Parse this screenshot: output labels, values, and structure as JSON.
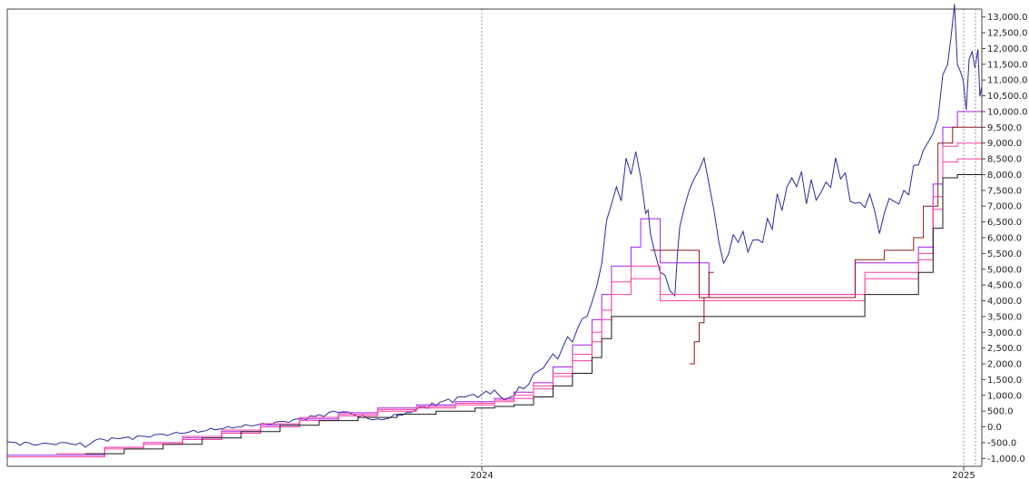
{
  "chart_data": {
    "type": "line",
    "title": "",
    "xlabel": "",
    "ylabel": "",
    "x_ticks": [
      "2024",
      "2025"
    ],
    "y_ticks": [
      13000,
      12500,
      12000,
      11500,
      11000,
      10500,
      10000,
      9500,
      9000,
      8500,
      8000,
      7500,
      7000,
      6500,
      6000,
      5500,
      5000,
      4500,
      4000,
      3500,
      3000,
      2500,
      2000,
      1500,
      1000,
      500,
      0,
      -500,
      -1000
    ],
    "y_tick_labels": [
      "13,000.0",
      "12,500.0",
      "12,000.0",
      "11,500.0",
      "11,000.0",
      "10,500.0",
      "10,000.0",
      "9,500.0",
      "9,000.0",
      "8,500.0",
      "8,000.0",
      "7,500.0",
      "7,000.0",
      "6,500.0",
      "6,000.0",
      "5,500.0",
      "5,000.0",
      "4,500.0",
      "4,000.0",
      "3,500.0",
      "3,000.0",
      "2,500.0",
      "2,000.0",
      "1,500.0",
      "1,000.0",
      "500.0",
      "0.0",
      "-500.0",
      "-1,000.0"
    ],
    "ylim": [
      -1250,
      13250
    ],
    "grid": "vertical",
    "colors": {
      "price": "#2b2b9e",
      "stop_dark_red": "#8b1a1a",
      "stop_magenta": "#ff3fa0",
      "stop_purple": "#a020f0",
      "stop_black": "#1a1a1a",
      "axis": "#444444",
      "gridline": "#999999"
    },
    "series": [
      {
        "kind": "price",
        "color_key": "price",
        "points": [
          [
            0,
            -500
          ],
          [
            0.04,
            -560
          ],
          [
            0.06,
            -480
          ],
          [
            0.08,
            -620
          ],
          [
            0.09,
            -420
          ],
          [
            0.12,
            -360
          ],
          [
            0.16,
            -250
          ],
          [
            0.2,
            -120
          ],
          [
            0.24,
            20
          ],
          [
            0.28,
            140
          ],
          [
            0.32,
            350
          ],
          [
            0.34,
            520
          ],
          [
            0.36,
            350
          ],
          [
            0.38,
            200
          ],
          [
            0.41,
            450
          ],
          [
            0.44,
            750
          ],
          [
            0.47,
            950
          ],
          [
            0.5,
            1100
          ],
          [
            0.51,
            850
          ],
          [
            0.53,
            1250
          ],
          [
            0.55,
            1900
          ],
          [
            0.57,
            2500
          ],
          [
            0.59,
            3300
          ],
          [
            0.6,
            4000
          ],
          [
            0.61,
            5500
          ],
          [
            0.62,
            6900
          ],
          [
            0.635,
            8000
          ],
          [
            0.645,
            9100
          ],
          [
            0.655,
            7200
          ],
          [
            0.66,
            5800
          ],
          [
            0.675,
            4600
          ],
          [
            0.685,
            4400
          ],
          [
            0.69,
            6500
          ],
          [
            0.705,
            7600
          ],
          [
            0.715,
            8400
          ],
          [
            0.725,
            7000
          ],
          [
            0.735,
            5300
          ],
          [
            0.75,
            5900
          ],
          [
            0.765,
            5700
          ],
          [
            0.78,
            6500
          ],
          [
            0.795,
            7300
          ],
          [
            0.81,
            7700
          ],
          [
            0.825,
            7300
          ],
          [
            0.84,
            7800
          ],
          [
            0.855,
            8500
          ],
          [
            0.865,
            7000
          ],
          [
            0.875,
            6700
          ],
          [
            0.885,
            7600
          ],
          [
            0.895,
            6400
          ],
          [
            0.905,
            7100
          ],
          [
            0.915,
            6900
          ],
          [
            0.93,
            8300
          ],
          [
            0.945,
            9200
          ],
          [
            0.955,
            10000
          ],
          [
            0.965,
            11200
          ],
          [
            0.972,
            12900
          ],
          [
            0.978,
            11800
          ],
          [
            0.984,
            10500
          ],
          [
            0.99,
            11200
          ],
          [
            0.996,
            11600
          ],
          [
            1.0,
            10800
          ]
        ]
      },
      {
        "kind": "stop",
        "color_key": "stop_purple",
        "points": [
          [
            0,
            -900
          ],
          [
            0.07,
            -900
          ],
          [
            0.1,
            -650
          ],
          [
            0.14,
            -500
          ],
          [
            0.18,
            -350
          ],
          [
            0.22,
            -150
          ],
          [
            0.26,
            50
          ],
          [
            0.3,
            250
          ],
          [
            0.34,
            450
          ],
          [
            0.38,
            600
          ],
          [
            0.42,
            700
          ],
          [
            0.46,
            800
          ],
          [
            0.5,
            900
          ],
          [
            0.52,
            1100
          ],
          [
            0.54,
            1400
          ],
          [
            0.56,
            1900
          ],
          [
            0.58,
            2600
          ],
          [
            0.6,
            3400
          ],
          [
            0.61,
            4200
          ],
          [
            0.62,
            5100
          ],
          [
            0.64,
            5700
          ],
          [
            0.65,
            6600
          ],
          [
            0.665,
            6600
          ],
          [
            0.67,
            5200
          ],
          [
            0.71,
            5200
          ],
          [
            0.72,
            4200
          ],
          [
            0.86,
            4200
          ],
          [
            0.87,
            5200
          ],
          [
            0.935,
            5700
          ],
          [
            0.95,
            7700
          ],
          [
            0.96,
            9500
          ],
          [
            0.975,
            10000
          ],
          [
            1.0,
            10000
          ]
        ]
      },
      {
        "kind": "stop",
        "color_key": "stop_dark_red",
        "points": [
          [
            0.66,
            5600
          ],
          [
            0.7,
            5600
          ],
          [
            0.71,
            4100
          ],
          [
            0.86,
            4100
          ],
          [
            0.87,
            5300
          ],
          [
            0.9,
            5600
          ],
          [
            0.93,
            6000
          ],
          [
            0.94,
            7000
          ],
          [
            0.955,
            9000
          ],
          [
            0.97,
            9500
          ],
          [
            1.0,
            9500
          ]
        ]
      },
      {
        "kind": "stop",
        "color_key": "stop_magenta",
        "points": [
          [
            0,
            -950
          ],
          [
            0.07,
            -950
          ],
          [
            0.1,
            -700
          ],
          [
            0.14,
            -550
          ],
          [
            0.18,
            -400
          ],
          [
            0.22,
            -200
          ],
          [
            0.26,
            0
          ],
          [
            0.3,
            200
          ],
          [
            0.34,
            350
          ],
          [
            0.38,
            500
          ],
          [
            0.42,
            600
          ],
          [
            0.46,
            700
          ],
          [
            0.5,
            800
          ],
          [
            0.52,
            1000
          ],
          [
            0.54,
            1300
          ],
          [
            0.56,
            1700
          ],
          [
            0.58,
            2300
          ],
          [
            0.6,
            3000
          ],
          [
            0.61,
            3700
          ],
          [
            0.62,
            4600
          ],
          [
            0.64,
            5100
          ],
          [
            0.66,
            5100
          ],
          [
            0.67,
            4200
          ],
          [
            0.87,
            4200
          ],
          [
            0.88,
            4900
          ],
          [
            0.935,
            5500
          ],
          [
            0.95,
            7300
          ],
          [
            0.96,
            8900
          ],
          [
            0.975,
            9000
          ],
          [
            1.0,
            9000
          ]
        ]
      },
      {
        "kind": "stop",
        "color_key": "stop_magenta",
        "points": [
          [
            0.05,
            -850
          ],
          [
            0.1,
            -650
          ],
          [
            0.14,
            -500
          ],
          [
            0.18,
            -300
          ],
          [
            0.22,
            -100
          ],
          [
            0.26,
            100
          ],
          [
            0.3,
            300
          ],
          [
            0.34,
            400
          ],
          [
            0.38,
            550
          ],
          [
            0.42,
            650
          ],
          [
            0.46,
            750
          ],
          [
            0.5,
            850
          ],
          [
            0.52,
            900
          ],
          [
            0.54,
            1200
          ],
          [
            0.56,
            1600
          ],
          [
            0.58,
            2100
          ],
          [
            0.6,
            2700
          ],
          [
            0.61,
            3400
          ],
          [
            0.62,
            4200
          ],
          [
            0.64,
            4700
          ],
          [
            0.66,
            4700
          ],
          [
            0.67,
            4000
          ],
          [
            0.87,
            4000
          ],
          [
            0.88,
            4700
          ],
          [
            0.935,
            5300
          ],
          [
            0.95,
            6900
          ],
          [
            0.96,
            8400
          ],
          [
            0.975,
            8500
          ],
          [
            1.0,
            8500
          ]
        ]
      },
      {
        "kind": "stop",
        "color_key": "stop_black",
        "points": [
          [
            0.08,
            -850
          ],
          [
            0.12,
            -700
          ],
          [
            0.16,
            -550
          ],
          [
            0.2,
            -350
          ],
          [
            0.24,
            -150
          ],
          [
            0.28,
            50
          ],
          [
            0.32,
            200
          ],
          [
            0.36,
            300
          ],
          [
            0.4,
            400
          ],
          [
            0.44,
            500
          ],
          [
            0.48,
            600
          ],
          [
            0.5,
            650
          ],
          [
            0.52,
            700
          ],
          [
            0.54,
            950
          ],
          [
            0.56,
            1300
          ],
          [
            0.58,
            1700
          ],
          [
            0.6,
            2200
          ],
          [
            0.61,
            2800
          ],
          [
            0.62,
            3500
          ],
          [
            0.64,
            3500
          ],
          [
            0.66,
            3500
          ],
          [
            0.67,
            3500
          ],
          [
            0.87,
            3500
          ],
          [
            0.88,
            4200
          ],
          [
            0.935,
            4900
          ],
          [
            0.95,
            6300
          ],
          [
            0.96,
            7900
          ],
          [
            0.975,
            8000
          ],
          [
            1.0,
            8000
          ]
        ]
      },
      {
        "kind": "stop",
        "color_key": "stop_dark_red",
        "points": [
          [
            0.7,
            2000
          ],
          [
            0.705,
            2700
          ],
          [
            0.71,
            3300
          ],
          [
            0.715,
            4100
          ],
          [
            0.72,
            4900
          ],
          [
            0.725,
            4900
          ]
        ]
      }
    ]
  }
}
